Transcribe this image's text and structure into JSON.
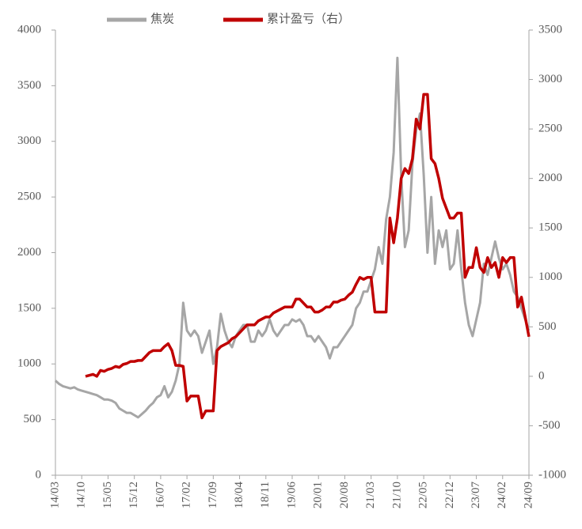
{
  "chart_data": {
    "type": "line",
    "categories": [
      "14/03",
      null,
      null,
      null,
      null,
      null,
      null,
      "14/10",
      null,
      null,
      null,
      null,
      null,
      null,
      "15/05",
      null,
      null,
      null,
      null,
      null,
      null,
      "15/12",
      null,
      null,
      null,
      null,
      null,
      null,
      "16/07",
      null,
      null,
      null,
      null,
      null,
      null,
      "17/02",
      null,
      null,
      null,
      null,
      null,
      null,
      "17/09",
      null,
      null,
      null,
      null,
      null,
      null,
      "18/04",
      null,
      null,
      null,
      null,
      null,
      null,
      "18/11",
      null,
      null,
      null,
      null,
      null,
      null,
      "19/06",
      null,
      null,
      null,
      null,
      null,
      null,
      "20/01",
      null,
      null,
      null,
      null,
      null,
      null,
      "20/08",
      null,
      null,
      null,
      null,
      null,
      null,
      "21/03",
      null,
      null,
      null,
      null,
      null,
      null,
      "21/10",
      null,
      null,
      null,
      null,
      null,
      null,
      "22/05",
      null,
      null,
      null,
      null,
      null,
      null,
      "22/12",
      null,
      null,
      null,
      null,
      null,
      null,
      "23/07",
      null,
      null,
      null,
      null,
      null,
      null,
      "24/02",
      null,
      null,
      null,
      null,
      null,
      null,
      "24/09"
    ],
    "series": [
      {
        "name": "焦炭",
        "color": "#a6a6a6",
        "values": [
          850,
          820,
          800,
          790,
          780,
          790,
          770,
          760,
          750,
          740,
          730,
          720,
          700,
          680,
          680,
          670,
          650,
          600,
          580,
          560,
          560,
          540,
          520,
          550,
          580,
          620,
          650,
          700,
          720,
          800,
          700,
          750,
          850,
          1000,
          1550,
          1300,
          1250,
          1300,
          1250,
          1100,
          1200,
          1300,
          1000,
          1150,
          1450,
          1300,
          1200,
          1150,
          1250,
          1300,
          1350,
          1350,
          1200,
          1200,
          1300,
          1250,
          1300,
          1400,
          1300,
          1250,
          1300,
          1350,
          1350,
          1400,
          1380,
          1400,
          1350,
          1250,
          1250,
          1200,
          1250,
          1200,
          1150,
          1050,
          1150,
          1150,
          1200,
          1250,
          1300,
          1350,
          1500,
          1550,
          1650,
          1650,
          1750,
          1850,
          2050,
          1900,
          2300,
          2500,
          2900,
          3750,
          2700,
          2050,
          2200,
          2800,
          3100,
          3250,
          2700,
          2000,
          2500,
          1900,
          2200,
          2050,
          2200,
          1850,
          1900,
          2200,
          1850,
          1550,
          1350,
          1250,
          1400,
          1550,
          1900,
          1800,
          1950,
          2100,
          1950,
          1850,
          1900,
          1800,
          1650,
          1600,
          1500,
          1400,
          1300
        ]
      },
      {
        "name": "累计盈亏（右）",
        "color": "#c00000",
        "axis": "y2",
        "values": [
          null,
          null,
          null,
          null,
          null,
          null,
          null,
          null,
          0,
          10,
          20,
          0,
          60,
          50,
          70,
          80,
          100,
          90,
          120,
          130,
          150,
          150,
          160,
          160,
          200,
          240,
          260,
          260,
          260,
          300,
          330,
          260,
          110,
          110,
          100,
          -250,
          -200,
          -200,
          -200,
          -420,
          -350,
          -350,
          -350,
          260,
          300,
          320,
          340,
          380,
          400,
          440,
          480,
          520,
          520,
          520,
          560,
          580,
          600,
          600,
          640,
          660,
          680,
          700,
          700,
          700,
          780,
          780,
          740,
          700,
          700,
          650,
          650,
          670,
          700,
          700,
          750,
          750,
          770,
          780,
          820,
          850,
          930,
          1000,
          980,
          1000,
          1000,
          650,
          650,
          650,
          650,
          1600,
          1350,
          1600,
          2000,
          2100,
          2050,
          2200,
          2600,
          2500,
          2850,
          2850,
          2200,
          2150,
          2000,
          1800,
          1700,
          1600,
          1600,
          1650,
          1650,
          1000,
          1100,
          1100,
          1300,
          1100,
          1050,
          1200,
          1100,
          1150,
          1000,
          1200,
          1150,
          1200,
          1200,
          700,
          800,
          600,
          400
        ]
      }
    ],
    "ylim": [
      0,
      4000
    ],
    "yticks": [
      0,
      500,
      1000,
      1500,
      2000,
      2500,
      3000,
      3500,
      4000
    ],
    "y2lim": [
      -1000,
      3500
    ],
    "y2ticks": [
      -1000,
      -500,
      0,
      500,
      1000,
      1500,
      2000,
      2500,
      3000,
      3500
    ],
    "legend": "top"
  }
}
